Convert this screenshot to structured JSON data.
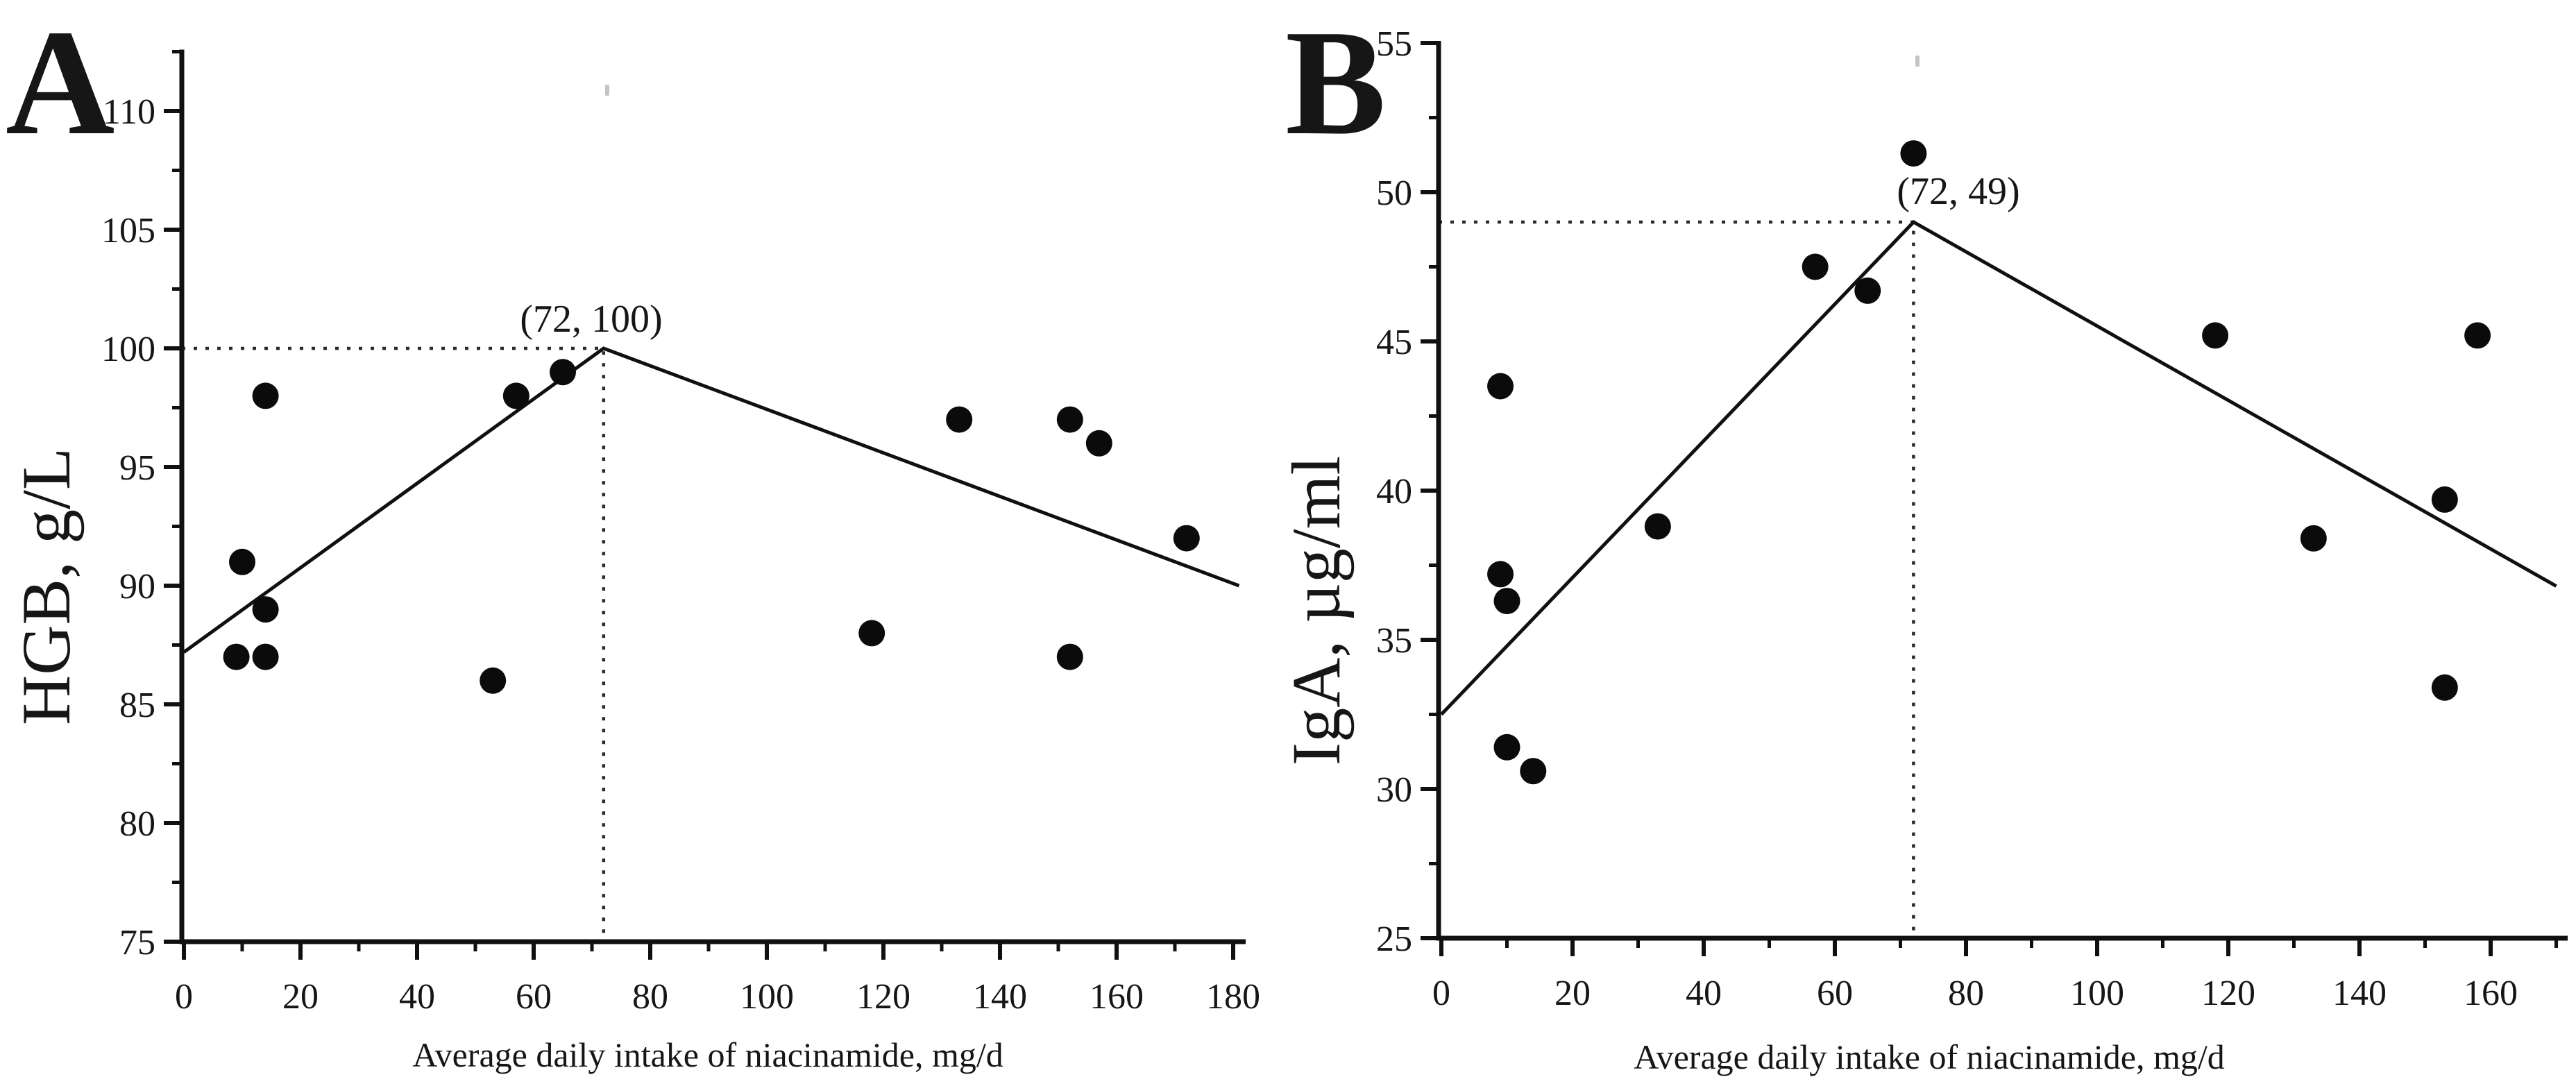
{
  "figure": {
    "description": "Two-panel scatter figure with segmented (broken-stick) regression lines and dotted breakpoint reference lines"
  },
  "chart_data": [
    {
      "type": "scatter",
      "panel_label": "A",
      "xlabel": "Average daily intake of niacinamide, mg/d",
      "ylabel": "HGB, g/L",
      "xlim": [
        0,
        182
      ],
      "ylim": [
        75,
        112.5
      ],
      "x_major_ticks": [
        0,
        20,
        40,
        60,
        80,
        100,
        120,
        140,
        160,
        180
      ],
      "x_minor_ticks": [
        10,
        30,
        50,
        70,
        90,
        110,
        130,
        150,
        170
      ],
      "y_major_ticks": [
        75,
        80,
        85,
        90,
        95,
        100,
        105,
        110
      ],
      "y_minor_ticks": [
        77.5,
        82.5,
        87.5,
        92.5,
        97.5,
        102.5,
        107.5,
        112.5
      ],
      "grid": false,
      "legend": null,
      "points": [
        [
          14,
          98
        ],
        [
          10,
          91
        ],
        [
          14,
          89
        ],
        [
          9,
          87
        ],
        [
          14,
          87
        ],
        [
          53,
          86
        ],
        [
          57,
          98
        ],
        [
          65,
          99
        ],
        [
          118,
          88
        ],
        [
          133,
          97
        ],
        [
          152,
          97
        ],
        [
          157,
          96
        ],
        [
          152,
          87
        ],
        [
          172,
          92
        ]
      ],
      "fit_line": [
        [
          0,
          87.2
        ],
        [
          72,
          100
        ],
        [
          181,
          90
        ]
      ],
      "breakpoint": {
        "x": 72,
        "y": 100
      },
      "annotation": "(72, 100)"
    },
    {
      "type": "scatter",
      "panel_label": "B",
      "xlabel": "Average daily intake of niacinamide, mg/d",
      "ylabel": "IgA, µg/ml",
      "xlim": [
        0,
        172
      ],
      "ylim": [
        25,
        55
      ],
      "x_major_ticks": [
        0,
        20,
        40,
        60,
        80,
        100,
        120,
        140,
        160
      ],
      "x_minor_ticks": [
        10,
        30,
        50,
        70,
        90,
        110,
        130,
        150,
        170
      ],
      "y_major_ticks": [
        25,
        30,
        35,
        40,
        45,
        50,
        55
      ],
      "y_minor_ticks": [
        27.5,
        32.5,
        37.5,
        42.5,
        47.5,
        52.5
      ],
      "grid": false,
      "legend": null,
      "points": [
        [
          9,
          43.5
        ],
        [
          9,
          37.2
        ],
        [
          10,
          36.3
        ],
        [
          10,
          31.4
        ],
        [
          14,
          30.6
        ],
        [
          33,
          38.8
        ],
        [
          57,
          47.5
        ],
        [
          65,
          46.7
        ],
        [
          72,
          51.3
        ],
        [
          118,
          45.2
        ],
        [
          133,
          38.4
        ],
        [
          153,
          39.7
        ],
        [
          158,
          45.2
        ],
        [
          153,
          33.4
        ]
      ],
      "fit_line": [
        [
          0,
          32.5
        ],
        [
          72,
          49
        ],
        [
          170,
          36.8
        ]
      ],
      "breakpoint": {
        "x": 72,
        "y": 49
      },
      "annotation": "(72, 49)"
    }
  ]
}
